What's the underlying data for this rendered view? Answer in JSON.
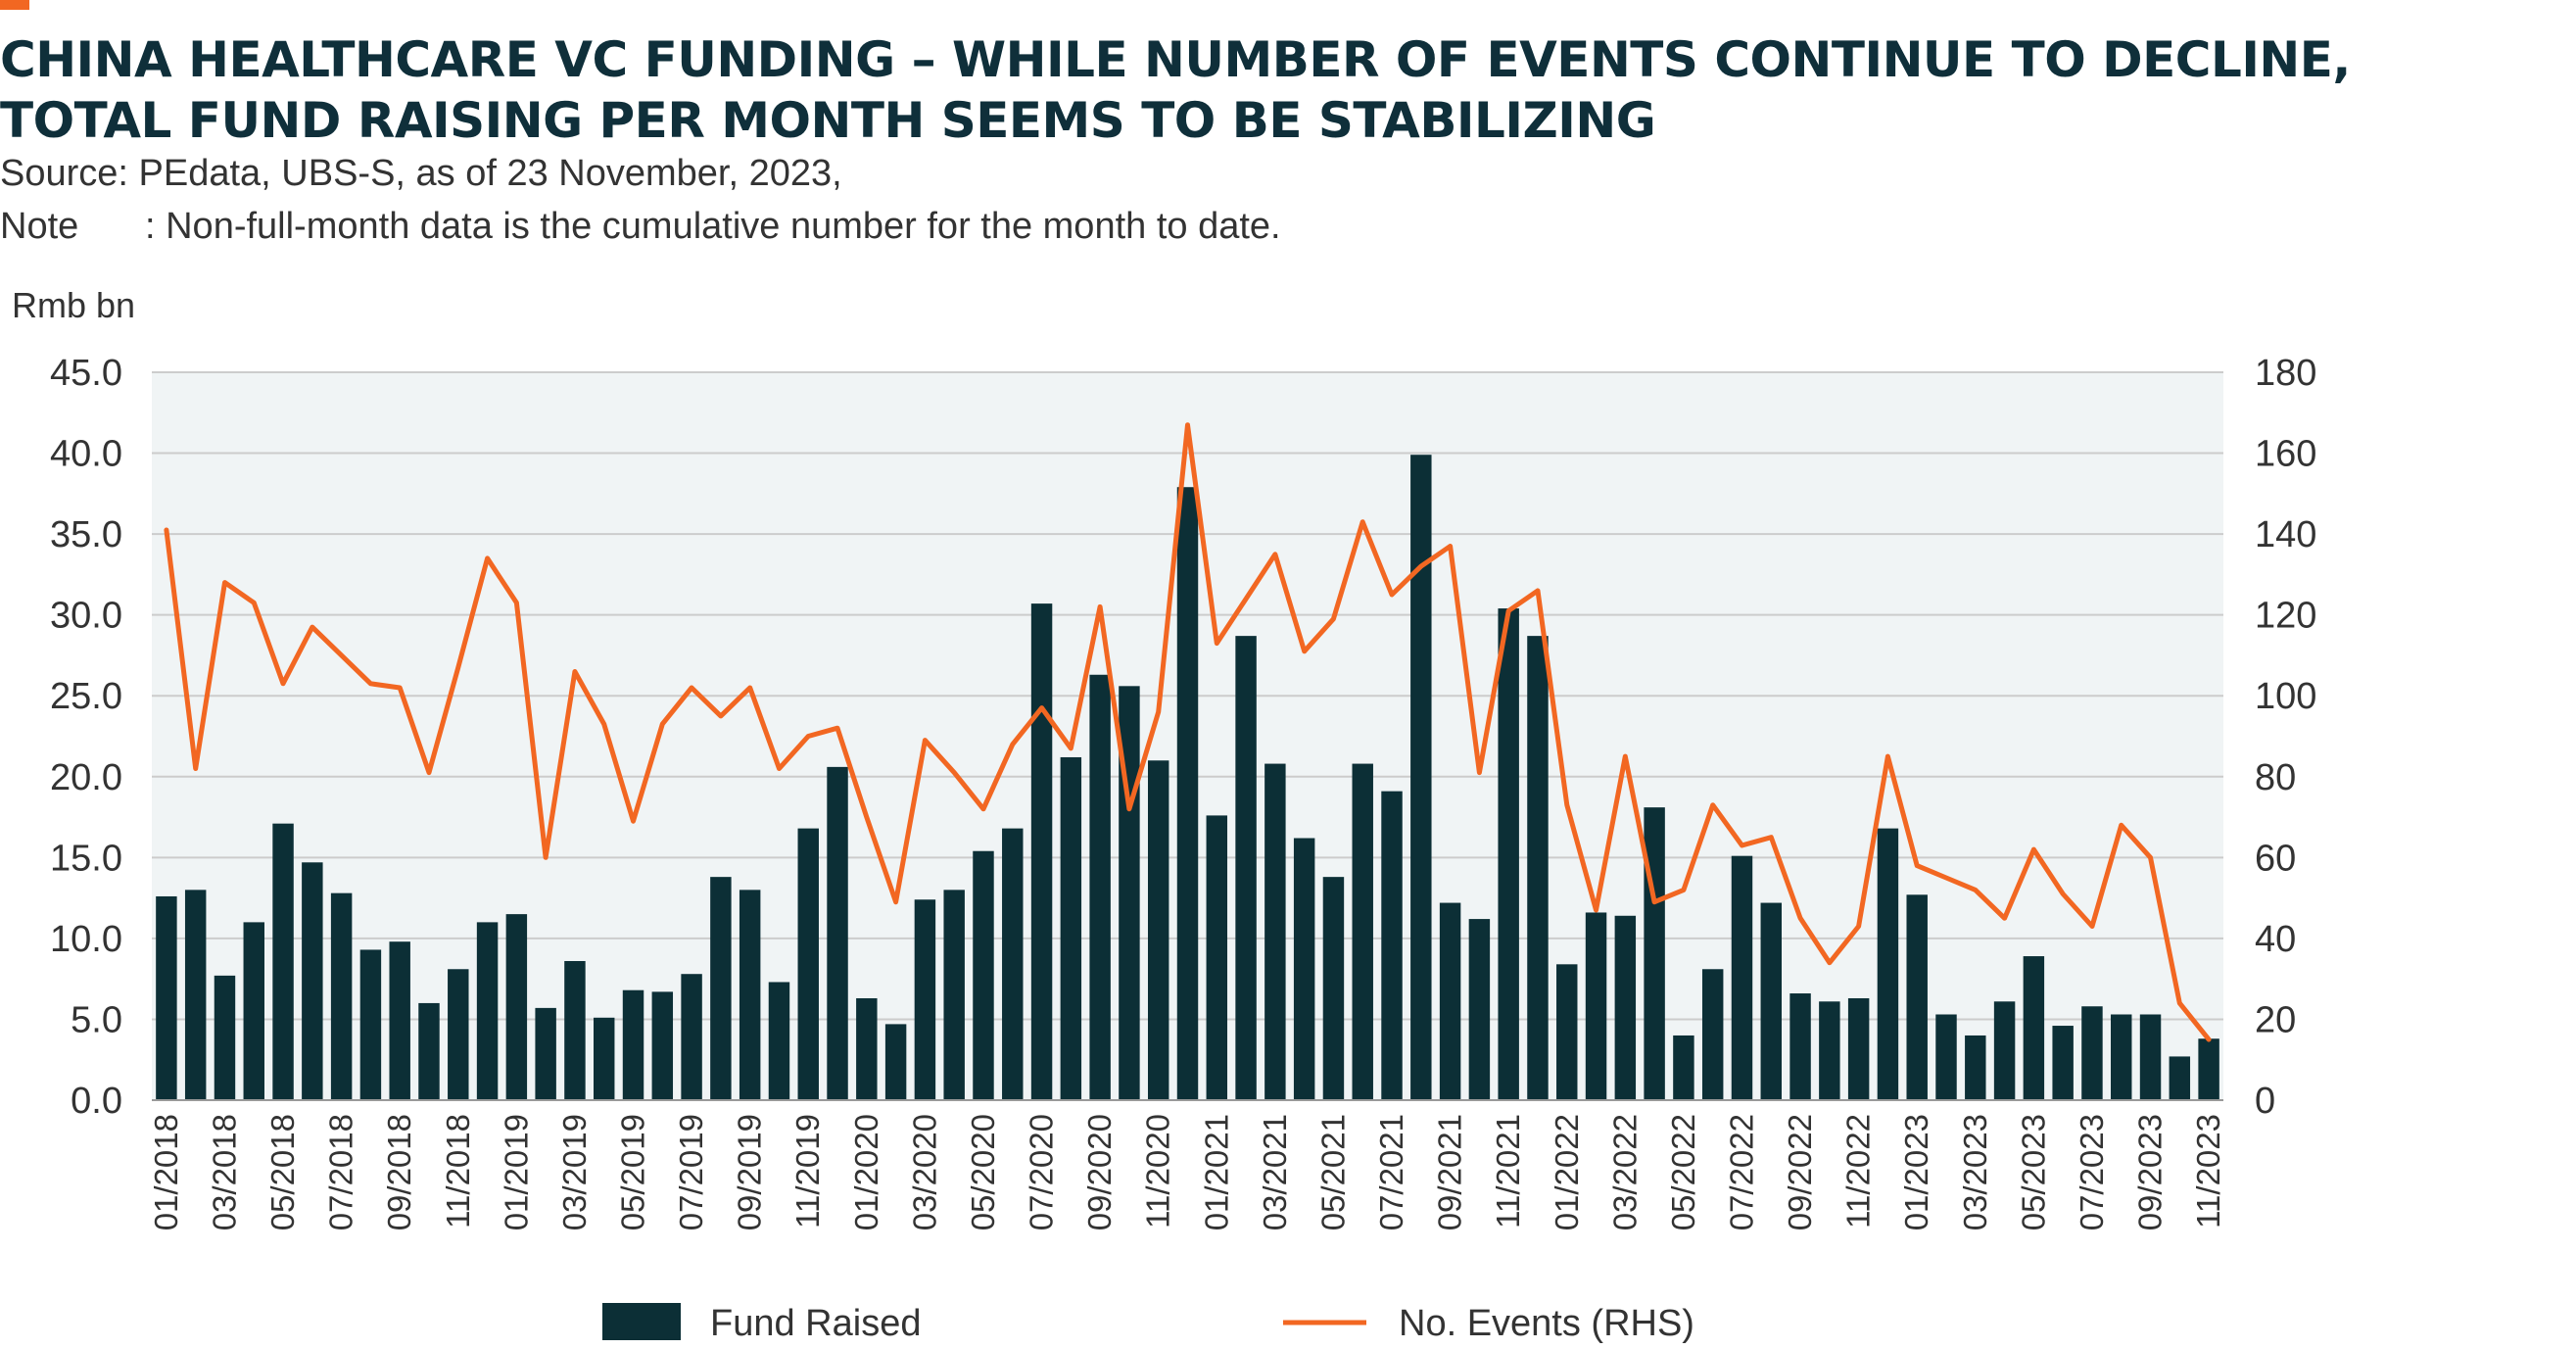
{
  "title_lines": [
    "CHINA HEALTHCARE VC FUNDING – WHILE NUMBER OF EVENTS CONTINUE TO DECLINE,",
    "TOTAL FUND RAISING PER MONTH SEEMS TO BE STABILIZING"
  ],
  "source": "Source: PEdata, UBS-S, as of 23 November, 2023,",
  "note_label": "Note",
  "note_text": ": Non-full-month data is the cumulative number for the month to date.",
  "colors": {
    "accent": "#f26722",
    "bar": "#0c2f36",
    "line": "#f26722",
    "plot_bg": "#f0f4f5",
    "grid": "#cccccc"
  },
  "chart_data": {
    "type": "bar",
    "y_unit_label": "Rmb bn",
    "ylim": [
      0,
      45
    ],
    "y_ticks": [
      "0.0",
      "5.0",
      "10.0",
      "15.0",
      "20.0",
      "25.0",
      "30.0",
      "35.0",
      "40.0",
      "45.0"
    ],
    "y2lim": [
      0,
      180
    ],
    "y2_ticks": [
      "0",
      "20",
      "40",
      "60",
      "80",
      "100",
      "120",
      "140",
      "160",
      "180"
    ],
    "grid": true,
    "legend_position": "bottom",
    "categories": [
      "01/2018",
      "02/2018",
      "03/2018",
      "04/2018",
      "05/2018",
      "06/2018",
      "07/2018",
      "08/2018",
      "09/2018",
      "10/2018",
      "11/2018",
      "12/2018",
      "01/2019",
      "02/2019",
      "03/2019",
      "04/2019",
      "05/2019",
      "06/2019",
      "07/2019",
      "08/2019",
      "09/2019",
      "10/2019",
      "11/2019",
      "12/2019",
      "01/2020",
      "02/2020",
      "03/2020",
      "04/2020",
      "05/2020",
      "06/2020",
      "07/2020",
      "08/2020",
      "09/2020",
      "10/2020",
      "11/2020",
      "12/2020",
      "01/2021",
      "02/2021",
      "03/2021",
      "04/2021",
      "05/2021",
      "06/2021",
      "07/2021",
      "08/2021",
      "09/2021",
      "10/2021",
      "11/2021",
      "12/2021",
      "01/2022",
      "02/2022",
      "03/2022",
      "04/2022",
      "05/2022",
      "06/2022",
      "07/2022",
      "08/2022",
      "09/2022",
      "10/2022",
      "11/2022",
      "12/2022",
      "01/2023",
      "02/2023",
      "03/2023",
      "04/2023",
      "05/2023",
      "06/2023",
      "07/2023",
      "08/2023",
      "09/2023",
      "10/2023",
      "11/2023"
    ],
    "tick_labels": [
      "01/2018",
      "03/2018",
      "05/2018",
      "07/2018",
      "09/2018",
      "11/2018",
      "01/2019",
      "03/2019",
      "05/2019",
      "07/2019",
      "09/2019",
      "11/2019",
      "01/2020",
      "03/2020",
      "05/2020",
      "07/2020",
      "09/2020",
      "11/2020",
      "01/2021",
      "03/2021",
      "05/2021",
      "07/2021",
      "09/2021",
      "11/2021",
      "01/2022",
      "03/2022",
      "05/2022",
      "07/2022",
      "09/2022",
      "11/2022",
      "01/2023",
      "03/2023",
      "05/2023",
      "07/2023",
      "09/2023",
      "11/2023"
    ],
    "series": [
      {
        "name": "Fund Raised",
        "type": "bar",
        "axis": "left",
        "values": [
          12.6,
          13.0,
          7.7,
          11.0,
          17.1,
          14.7,
          12.8,
          9.3,
          9.8,
          6.0,
          8.1,
          11.0,
          11.5,
          5.7,
          8.6,
          5.1,
          6.8,
          6.7,
          7.8,
          13.8,
          13.0,
          7.3,
          16.8,
          20.6,
          6.3,
          4.7,
          12.4,
          13.0,
          15.4,
          16.8,
          30.7,
          21.2,
          26.3,
          25.6,
          21.0,
          37.9,
          17.6,
          28.7,
          20.8,
          16.2,
          13.8,
          20.8,
          19.1,
          39.9,
          12.2,
          11.2,
          30.4,
          28.7,
          8.4,
          11.6,
          11.4,
          18.1,
          4.0,
          8.1,
          15.1,
          12.2,
          6.6,
          6.1,
          6.3,
          16.8,
          12.7,
          5.3,
          4.0,
          6.1,
          8.9,
          4.6,
          5.8,
          5.3,
          5.3,
          2.7,
          3.8
        ]
      },
      {
        "name": "No. Events (RHS)",
        "type": "line",
        "axis": "right",
        "values": [
          141,
          82,
          128,
          123,
          103,
          117,
          110,
          103,
          102,
          81,
          107,
          134,
          123,
          60,
          106,
          93,
          69,
          93,
          102,
          95,
          102,
          82,
          90,
          92,
          70,
          49,
          89,
          81,
          72,
          88,
          97,
          87,
          122,
          72,
          96,
          167,
          113,
          124,
          135,
          111,
          119,
          143,
          125,
          132,
          137,
          81,
          121,
          126,
          73,
          47,
          85,
          49,
          52,
          73,
          63,
          65,
          45,
          34,
          43,
          85,
          58,
          55,
          52,
          45,
          62,
          51,
          43,
          68,
          60,
          24,
          15
        ]
      }
    ]
  }
}
